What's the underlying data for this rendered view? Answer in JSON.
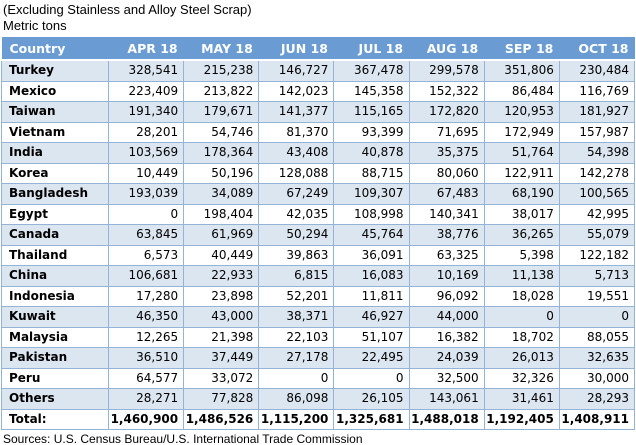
{
  "titles": {
    "line1": "(Excluding Stainless and Alloy Steel Scrap)",
    "line2": "Metric tons"
  },
  "colors": {
    "header_bg": "#6A9CD3",
    "band_bg": "#DCE6F1",
    "grid_border": "#95B3D7",
    "header_text": "#FFFFFF"
  },
  "table": {
    "columns": [
      "Country",
      "APR 18",
      "MAY 18",
      "JUN 18",
      "JUL 18",
      "AUG 18",
      "SEP 18",
      "OCT 18"
    ],
    "rows": [
      {
        "country": "Turkey",
        "values": [
          "328,541",
          "215,238",
          "146,727",
          "367,478",
          "299,578",
          "351,806",
          "230,484"
        ]
      },
      {
        "country": "Mexico",
        "values": [
          "223,409",
          "213,822",
          "142,023",
          "145,358",
          "152,322",
          "86,484",
          "116,769"
        ]
      },
      {
        "country": "Taiwan",
        "values": [
          "191,340",
          "179,671",
          "141,377",
          "115,165",
          "172,820",
          "120,953",
          "181,927"
        ]
      },
      {
        "country": "Vietnam",
        "values": [
          "28,201",
          "54,746",
          "81,370",
          "93,399",
          "71,695",
          "172,949",
          "157,987"
        ]
      },
      {
        "country": "India",
        "values": [
          "103,569",
          "178,364",
          "43,408",
          "40,878",
          "35,375",
          "51,764",
          "54,398"
        ]
      },
      {
        "country": "Korea",
        "values": [
          "10,449",
          "50,196",
          "128,088",
          "88,715",
          "80,060",
          "122,911",
          "142,278"
        ]
      },
      {
        "country": "Bangladesh",
        "values": [
          "193,039",
          "34,089",
          "67,249",
          "109,307",
          "67,483",
          "68,190",
          "100,565"
        ]
      },
      {
        "country": "Egypt",
        "values": [
          "0",
          "198,404",
          "42,035",
          "108,998",
          "140,341",
          "38,017",
          "42,995"
        ]
      },
      {
        "country": "Canada",
        "values": [
          "63,845",
          "61,969",
          "50,294",
          "45,764",
          "38,776",
          "36,265",
          "55,079"
        ]
      },
      {
        "country": "Thailand",
        "values": [
          "6,573",
          "40,449",
          "39,863",
          "36,091",
          "63,325",
          "5,398",
          "122,182"
        ]
      },
      {
        "country": "China",
        "values": [
          "106,681",
          "22,933",
          "6,815",
          "16,083",
          "10,169",
          "11,138",
          "5,713"
        ]
      },
      {
        "country": "Indonesia",
        "values": [
          "17,280",
          "23,898",
          "52,201",
          "11,811",
          "96,092",
          "18,028",
          "19,551"
        ]
      },
      {
        "country": "Kuwait",
        "values": [
          "46,350",
          "43,000",
          "38,371",
          "46,927",
          "44,000",
          "0",
          "0"
        ]
      },
      {
        "country": "Malaysia",
        "values": [
          "12,265",
          "21,398",
          "22,103",
          "51,107",
          "16,382",
          "18,702",
          "88,055"
        ]
      },
      {
        "country": "Pakistan",
        "values": [
          "36,510",
          "37,449",
          "27,178",
          "22,495",
          "24,039",
          "26,013",
          "32,635"
        ]
      },
      {
        "country": "Peru",
        "values": [
          "64,577",
          "33,072",
          "0",
          "0",
          "32,500",
          "32,326",
          "30,000"
        ]
      },
      {
        "country": "Others",
        "values": [
          "28,271",
          "77,828",
          "86,098",
          "26,105",
          "143,061",
          "31,461",
          "28,293"
        ]
      }
    ],
    "total": {
      "label": "Total:",
      "values": [
        "1,460,900",
        "1,486,526",
        "1,115,200",
        "1,325,681",
        "1,488,018",
        "1,192,405",
        "1,408,911"
      ]
    }
  },
  "footer": "Sources: U.S. Census Bureau/U.S. International Trade Commission"
}
